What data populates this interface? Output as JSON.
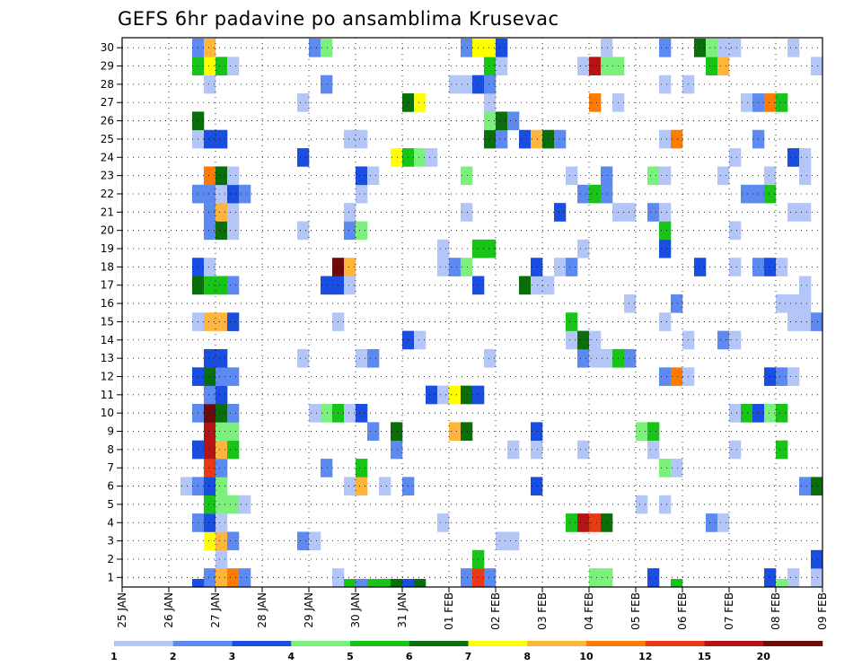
{
  "chart_data": {
    "type": "heatmap",
    "title": "GEFS 6hr padavine po ansamblima Krusevac",
    "xlabel": "",
    "ylabel": "",
    "x_ticks": [
      "25 JAN",
      "26 JAN",
      "27 JAN",
      "28 JAN",
      "29 JAN",
      "30 JAN",
      "31 JAN",
      "01 FEB",
      "02 FEB",
      "03 FEB",
      "04 FEB",
      "05 FEB",
      "06 FEB",
      "07 FEB",
      "08 FEB",
      "09 FEB"
    ],
    "y_ticks": [
      1,
      2,
      3,
      4,
      5,
      6,
      7,
      8,
      9,
      10,
      11,
      12,
      13,
      14,
      15,
      16,
      17,
      18,
      19,
      20,
      21,
      22,
      23,
      24,
      25,
      26,
      27,
      28,
      29,
      30
    ],
    "time_steps_per_day": 4,
    "time_steps": 60,
    "members": 30,
    "grid": true,
    "colorbar": {
      "placement": "bottom",
      "labels": [
        "1",
        "2",
        "3",
        "4",
        "5",
        "6",
        "7",
        "8",
        "10",
        "12",
        "15",
        "20"
      ],
      "colors": [
        "#b3c6f7",
        "#5c8af0",
        "#1a4ee0",
        "#7cf07c",
        "#17c417",
        "#0a6e0a",
        "#ffff00",
        "#ffb43c",
        "#ff7a00",
        "#e83a14",
        "#b41414",
        "#6e0a0a"
      ]
    },
    "cells": [
      [
        1,
        31,
        2
      ],
      [
        1,
        40,
        4
      ],
      [
        1,
        41,
        4
      ],
      [
        1,
        45,
        3
      ],
      [
        1,
        55,
        3
      ],
      [
        1,
        57,
        1
      ],
      [
        1,
        59,
        1
      ],
      [
        1,
        66,
        1
      ],
      [
        1,
        7,
        2
      ],
      [
        1,
        8,
        8
      ],
      [
        1,
        9,
        9
      ],
      [
        1,
        10,
        2
      ],
      [
        1,
        18,
        1
      ],
      [
        1,
        29,
        2
      ],
      [
        1,
        30,
        10
      ],
      [
        2,
        8,
        1
      ],
      [
        2,
        30,
        5
      ],
      [
        2,
        59,
        3
      ],
      [
        3,
        7,
        7
      ],
      [
        3,
        8,
        8
      ],
      [
        3,
        9,
        2
      ],
      [
        3,
        15,
        2
      ],
      [
        3,
        16,
        1
      ],
      [
        3,
        32,
        1
      ],
      [
        3,
        33,
        1
      ],
      [
        4,
        6,
        2
      ],
      [
        4,
        7,
        3
      ],
      [
        4,
        8,
        1
      ],
      [
        4,
        27,
        1
      ],
      [
        4,
        38,
        5
      ],
      [
        4,
        39,
        11
      ],
      [
        4,
        40,
        10
      ],
      [
        4,
        41,
        6
      ],
      [
        4,
        50,
        2
      ],
      [
        4,
        51,
        1
      ],
      [
        5,
        7,
        5
      ],
      [
        5,
        8,
        4
      ],
      [
        5,
        9,
        4
      ],
      [
        5,
        10,
        1
      ],
      [
        5,
        44,
        1
      ],
      [
        5,
        46,
        1
      ],
      [
        6,
        5,
        1
      ],
      [
        6,
        6,
        2
      ],
      [
        6,
        7,
        3
      ],
      [
        6,
        8,
        4
      ],
      [
        6,
        19,
        1
      ],
      [
        6,
        20,
        8
      ],
      [
        6,
        22,
        1
      ],
      [
        6,
        24,
        2
      ],
      [
        6,
        35,
        3
      ],
      [
        6,
        58,
        2
      ],
      [
        6,
        59,
        6
      ],
      [
        7,
        7,
        10
      ],
      [
        7,
        8,
        2
      ],
      [
        7,
        17,
        2
      ],
      [
        7,
        20,
        5
      ],
      [
        7,
        46,
        4
      ],
      [
        7,
        47,
        1
      ],
      [
        8,
        6,
        3
      ],
      [
        8,
        7,
        11
      ],
      [
        8,
        8,
        8
      ],
      [
        8,
        9,
        5
      ],
      [
        8,
        23,
        2
      ],
      [
        8,
        33,
        1
      ],
      [
        8,
        35,
        1
      ],
      [
        8,
        39,
        1
      ],
      [
        8,
        45,
        1
      ],
      [
        8,
        52,
        1
      ],
      [
        8,
        56,
        5
      ],
      [
        9,
        7,
        11
      ],
      [
        9,
        8,
        4
      ],
      [
        9,
        9,
        4
      ],
      [
        9,
        21,
        2
      ],
      [
        9,
        23,
        6
      ],
      [
        9,
        28,
        8
      ],
      [
        9,
        29,
        6
      ],
      [
        9,
        35,
        3
      ],
      [
        9,
        44,
        4
      ],
      [
        9,
        45,
        5
      ],
      [
        10,
        6,
        2
      ],
      [
        10,
        7,
        12
      ],
      [
        10,
        8,
        6
      ],
      [
        10,
        9,
        2
      ],
      [
        10,
        16,
        1
      ],
      [
        10,
        17,
        4
      ],
      [
        10,
        18,
        5
      ],
      [
        10,
        19,
        1
      ],
      [
        10,
        20,
        3
      ],
      [
        10,
        52,
        1
      ],
      [
        10,
        53,
        5
      ],
      [
        10,
        54,
        3
      ],
      [
        10,
        55,
        4
      ],
      [
        10,
        56,
        5
      ],
      [
        11,
        7,
        2
      ],
      [
        11,
        8,
        3
      ],
      [
        11,
        26,
        3
      ],
      [
        11,
        27,
        1
      ],
      [
        11,
        28,
        7
      ],
      [
        11,
        29,
        6
      ],
      [
        11,
        30,
        3
      ],
      [
        12,
        6,
        3
      ],
      [
        12,
        7,
        6
      ],
      [
        12,
        8,
        2
      ],
      [
        12,
        9,
        2
      ],
      [
        12,
        46,
        2
      ],
      [
        12,
        47,
        9
      ],
      [
        12,
        48,
        1
      ],
      [
        12,
        55,
        3
      ],
      [
        12,
        56,
        2
      ],
      [
        12,
        57,
        1
      ],
      [
        13,
        7,
        3
      ],
      [
        13,
        8,
        3
      ],
      [
        13,
        15,
        1
      ],
      [
        13,
        20,
        1
      ],
      [
        13,
        21,
        2
      ],
      [
        13,
        31,
        1
      ],
      [
        13,
        39,
        2
      ],
      [
        13,
        40,
        1
      ],
      [
        13,
        41,
        1
      ],
      [
        13,
        42,
        5
      ],
      [
        13,
        43,
        2
      ],
      [
        14,
        24,
        3
      ],
      [
        14,
        25,
        1
      ],
      [
        14,
        38,
        1
      ],
      [
        14,
        39,
        6
      ],
      [
        14,
        40,
        1
      ],
      [
        14,
        48,
        1
      ],
      [
        14,
        51,
        2
      ],
      [
        14,
        52,
        1
      ],
      [
        15,
        6,
        1
      ],
      [
        15,
        7,
        8
      ],
      [
        15,
        8,
        8
      ],
      [
        15,
        9,
        3
      ],
      [
        15,
        18,
        1
      ],
      [
        15,
        38,
        5
      ],
      [
        15,
        46,
        1
      ],
      [
        15,
        57,
        1
      ],
      [
        15,
        58,
        1
      ],
      [
        15,
        59,
        2
      ],
      [
        16,
        47,
        2
      ],
      [
        16,
        43,
        1
      ],
      [
        16,
        56,
        1
      ],
      [
        16,
        57,
        1
      ],
      [
        16,
        58,
        1
      ],
      [
        17,
        6,
        6
      ],
      [
        17,
        7,
        5
      ],
      [
        17,
        8,
        5
      ],
      [
        17,
        9,
        2
      ],
      [
        17,
        17,
        3
      ],
      [
        17,
        18,
        3
      ],
      [
        17,
        19,
        1
      ],
      [
        17,
        30,
        3
      ],
      [
        17,
        34,
        6
      ],
      [
        17,
        35,
        1
      ],
      [
        17,
        36,
        1
      ],
      [
        17,
        58,
        1
      ],
      [
        18,
        6,
        3
      ],
      [
        18,
        7,
        1
      ],
      [
        18,
        18,
        12
      ],
      [
        18,
        19,
        8
      ],
      [
        18,
        27,
        1
      ],
      [
        18,
        28,
        2
      ],
      [
        18,
        29,
        4
      ],
      [
        18,
        35,
        3
      ],
      [
        18,
        37,
        1
      ],
      [
        18,
        38,
        2
      ],
      [
        18,
        49,
        3
      ],
      [
        18,
        52,
        1
      ],
      [
        18,
        54,
        2
      ],
      [
        18,
        55,
        3
      ],
      [
        18,
        56,
        1
      ],
      [
        19,
        27,
        1
      ],
      [
        19,
        30,
        5
      ],
      [
        19,
        31,
        5
      ],
      [
        19,
        39,
        1
      ],
      [
        19,
        46,
        3
      ],
      [
        20,
        7,
        2
      ],
      [
        20,
        8,
        6
      ],
      [
        20,
        9,
        1
      ],
      [
        20,
        15,
        1
      ],
      [
        20,
        19,
        2
      ],
      [
        20,
        20,
        4
      ],
      [
        20,
        46,
        5
      ],
      [
        20,
        52,
        1
      ],
      [
        21,
        7,
        2
      ],
      [
        21,
        8,
        8
      ],
      [
        21,
        9,
        1
      ],
      [
        21,
        19,
        1
      ],
      [
        21,
        29,
        1
      ],
      [
        21,
        37,
        3
      ],
      [
        21,
        42,
        1
      ],
      [
        21,
        43,
        1
      ],
      [
        21,
        45,
        2
      ],
      [
        21,
        46,
        1
      ],
      [
        21,
        57,
        1
      ],
      [
        21,
        58,
        1
      ],
      [
        22,
        6,
        2
      ],
      [
        22,
        7,
        2
      ],
      [
        22,
        8,
        1
      ],
      [
        22,
        9,
        3
      ],
      [
        22,
        10,
        2
      ],
      [
        22,
        20,
        1
      ],
      [
        22,
        39,
        2
      ],
      [
        22,
        40,
        5
      ],
      [
        22,
        41,
        2
      ],
      [
        22,
        53,
        2
      ],
      [
        22,
        54,
        2
      ],
      [
        22,
        55,
        5
      ],
      [
        23,
        7,
        9
      ],
      [
        23,
        8,
        6
      ],
      [
        23,
        9,
        1
      ],
      [
        23,
        20,
        3
      ],
      [
        23,
        21,
        1
      ],
      [
        23,
        29,
        4
      ],
      [
        23,
        38,
        1
      ],
      [
        23,
        41,
        2
      ],
      [
        23,
        45,
        4
      ],
      [
        23,
        46,
        1
      ],
      [
        23,
        51,
        1
      ],
      [
        23,
        55,
        1
      ],
      [
        23,
        58,
        1
      ],
      [
        24,
        15,
        3
      ],
      [
        24,
        23,
        7
      ],
      [
        24,
        24,
        5
      ],
      [
        24,
        25,
        4
      ],
      [
        24,
        26,
        1
      ],
      [
        24,
        52,
        1
      ],
      [
        24,
        57,
        3
      ],
      [
        24,
        58,
        1
      ],
      [
        25,
        6,
        1
      ],
      [
        25,
        7,
        3
      ],
      [
        25,
        8,
        3
      ],
      [
        25,
        19,
        1
      ],
      [
        25,
        20,
        1
      ],
      [
        25,
        31,
        6
      ],
      [
        25,
        32,
        2
      ],
      [
        25,
        34,
        3
      ],
      [
        25,
        35,
        8
      ],
      [
        25,
        36,
        6
      ],
      [
        25,
        37,
        2
      ],
      [
        25,
        46,
        1
      ],
      [
        25,
        47,
        9
      ],
      [
        25,
        54,
        2
      ],
      [
        26,
        6,
        6
      ],
      [
        26,
        31,
        4
      ],
      [
        26,
        32,
        6
      ],
      [
        26,
        33,
        2
      ],
      [
        27,
        15,
        1
      ],
      [
        27,
        24,
        6
      ],
      [
        27,
        25,
        7
      ],
      [
        27,
        31,
        1
      ],
      [
        27,
        40,
        9
      ],
      [
        27,
        42,
        1
      ],
      [
        27,
        53,
        1
      ],
      [
        27,
        54,
        2
      ],
      [
        27,
        55,
        9
      ],
      [
        27,
        56,
        5
      ],
      [
        28,
        7,
        1
      ],
      [
        28,
        17,
        2
      ],
      [
        28,
        28,
        1
      ],
      [
        28,
        29,
        1
      ],
      [
        28,
        30,
        3
      ],
      [
        28,
        31,
        2
      ],
      [
        28,
        46,
        1
      ],
      [
        28,
        48,
        1
      ],
      [
        29,
        6,
        5
      ],
      [
        29,
        7,
        7
      ],
      [
        29,
        8,
        5
      ],
      [
        29,
        9,
        1
      ],
      [
        29,
        31,
        5
      ],
      [
        29,
        32,
        1
      ],
      [
        29,
        39,
        1
      ],
      [
        29,
        40,
        11
      ],
      [
        29,
        41,
        4
      ],
      [
        29,
        42,
        4
      ],
      [
        29,
        50,
        5
      ],
      [
        29,
        51,
        8
      ],
      [
        29,
        59,
        1
      ],
      [
        30,
        6,
        2
      ],
      [
        30,
        7,
        8
      ],
      [
        30,
        16,
        2
      ],
      [
        30,
        17,
        4
      ],
      [
        30,
        29,
        2
      ],
      [
        30,
        30,
        7
      ],
      [
        30,
        31,
        7
      ],
      [
        30,
        32,
        3
      ],
      [
        30,
        41,
        1
      ],
      [
        30,
        46,
        2
      ],
      [
        30,
        49,
        6
      ],
      [
        30,
        50,
        4
      ],
      [
        30,
        51,
        1
      ],
      [
        30,
        52,
        1
      ],
      [
        30,
        57,
        1
      ],
      [
        0,
        6,
        3
      ],
      [
        0,
        19,
        5
      ],
      [
        0,
        20,
        2
      ],
      [
        0,
        21,
        5
      ],
      [
        0,
        22,
        5
      ],
      [
        0,
        23,
        6
      ],
      [
        0,
        24,
        3
      ],
      [
        0,
        25,
        6
      ],
      [
        0,
        47,
        5
      ],
      [
        0,
        56,
        4
      ]
    ]
  }
}
